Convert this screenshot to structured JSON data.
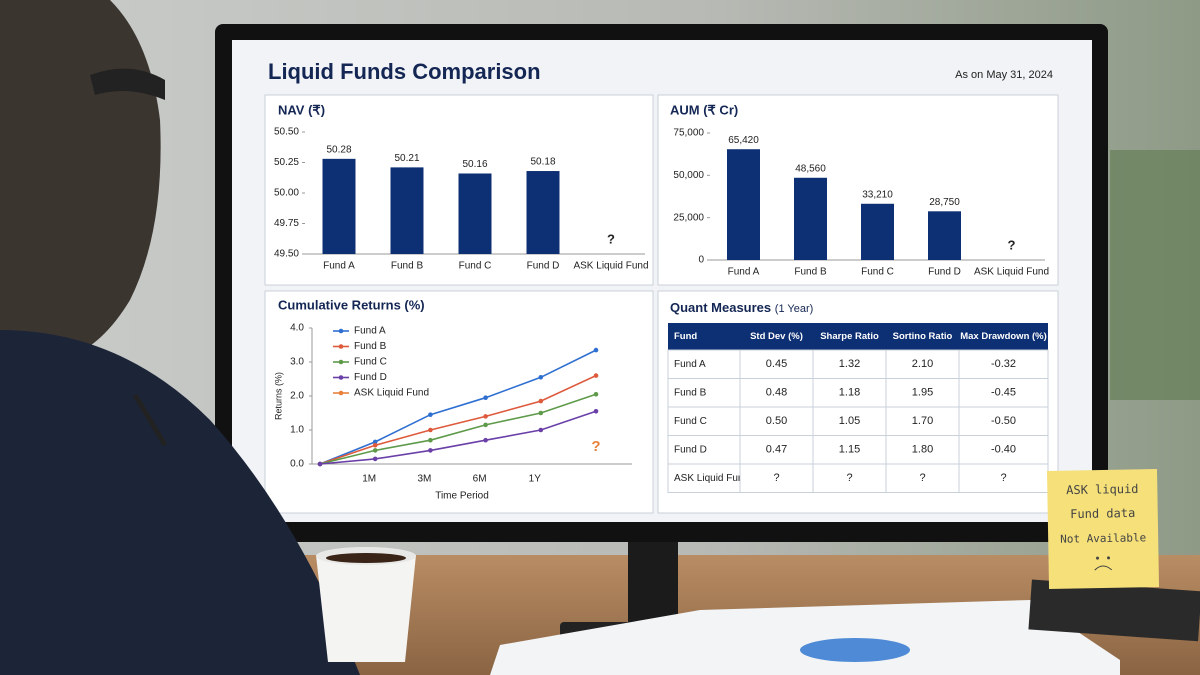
{
  "header": {
    "title": "Liquid Funds Comparison",
    "date": "As on May 31, 2024"
  },
  "chart_data": [
    {
      "type": "bar",
      "title": "NAV (₹)",
      "categories": [
        "Fund A",
        "Fund B",
        "Fund C",
        "Fund D",
        "ASK Liquid Fund"
      ],
      "values": [
        50.28,
        50.21,
        50.16,
        50.18,
        null
      ],
      "annotation": "?",
      "color": "#0d2f73",
      "ylim": [
        49.5,
        50.5
      ],
      "yticks": [
        {
          "value": 49.5,
          "label": "49.50"
        },
        49.75,
        {
          "value": 50,
          "label": "50.00"
        },
        50.25,
        {
          "value": 50.5,
          "label": "50.50"
        }
      ]
    },
    {
      "type": "bar",
      "title": "AUM (₹ Cr)",
      "categories": [
        "Fund A",
        "Fund B",
        "Fund C",
        "Fund D",
        "ASK Liquid Fund"
      ],
      "values": [
        65420,
        48560,
        33210,
        28750,
        null
      ],
      "value_labels": [
        "65,420",
        "48,560",
        "33,210",
        "28,750",
        null
      ],
      "annotation": "?",
      "color": "#0d2f73",
      "ylim": [
        0,
        75000
      ],
      "yticks": [
        0,
        {
          "value": 25000,
          "label": "25,000"
        },
        {
          "value": 50000,
          "label": "50,000"
        },
        {
          "value": 75000,
          "label": "75,000"
        }
      ]
    },
    {
      "type": "line",
      "title": "Cumulative Returns (%)",
      "xlabel": "Time Period",
      "ylabel": "Returns (%)",
      "categories": [
        null,
        "1M",
        "3M",
        "6M",
        "1Y",
        null
      ],
      "series": [
        {
          "name": "Fund A",
          "color": "#2e6fd1",
          "values": [
            0,
            0.65,
            1.45,
            1.95,
            2.55,
            3.35
          ]
        },
        {
          "name": "Fund B",
          "color": "#de5a3c",
          "values": [
            0,
            0.55,
            1.0,
            1.4,
            1.85,
            2.6
          ]
        },
        {
          "name": "Fund C",
          "color": "#5e9a4a",
          "values": [
            0,
            0.4,
            0.7,
            1.15,
            1.5,
            2.05
          ]
        },
        {
          "name": "Fund D",
          "color": "#6a3fa8",
          "values": [
            0,
            0.15,
            0.4,
            0.7,
            1.0,
            1.55
          ]
        },
        {
          "name": "ASK Liquid Fund",
          "color": "#e8823a",
          "values": [
            null,
            null,
            null,
            null,
            null,
            null
          ]
        }
      ],
      "annotation": "?",
      "ylim": [
        0,
        4
      ],
      "yticks": [
        {
          "value": 0,
          "label": "0.0"
        },
        {
          "value": 1,
          "label": "1.0"
        },
        {
          "value": 2,
          "label": "2.0"
        },
        {
          "value": 3,
          "label": "3.0"
        },
        {
          "value": 4,
          "label": "4.0"
        }
      ],
      "legend": "upper left"
    }
  ],
  "table": {
    "title": "Quant Measures",
    "subtitle": "(1 Year)",
    "columns": [
      "Fund",
      "Std Dev (%)",
      "Sharpe Ratio",
      "Sortino Ratio",
      "Max Drawdown (%)"
    ],
    "rows": [
      [
        "Fund A",
        "0.45",
        "1.32",
        "2.10",
        "-0.32"
      ],
      [
        "Fund B",
        "0.48",
        "1.18",
        "1.95",
        "-0.45"
      ],
      [
        "Fund C",
        "0.50",
        "1.05",
        "1.70",
        "-0.50"
      ],
      [
        "Fund D",
        "0.47",
        "1.15",
        "1.80",
        "-0.40"
      ],
      [
        "ASK Liquid Fund",
        "?",
        "?",
        "?",
        "?"
      ]
    ]
  },
  "note": [
    "ASK liquid",
    "Fund data",
    "Not Available"
  ]
}
